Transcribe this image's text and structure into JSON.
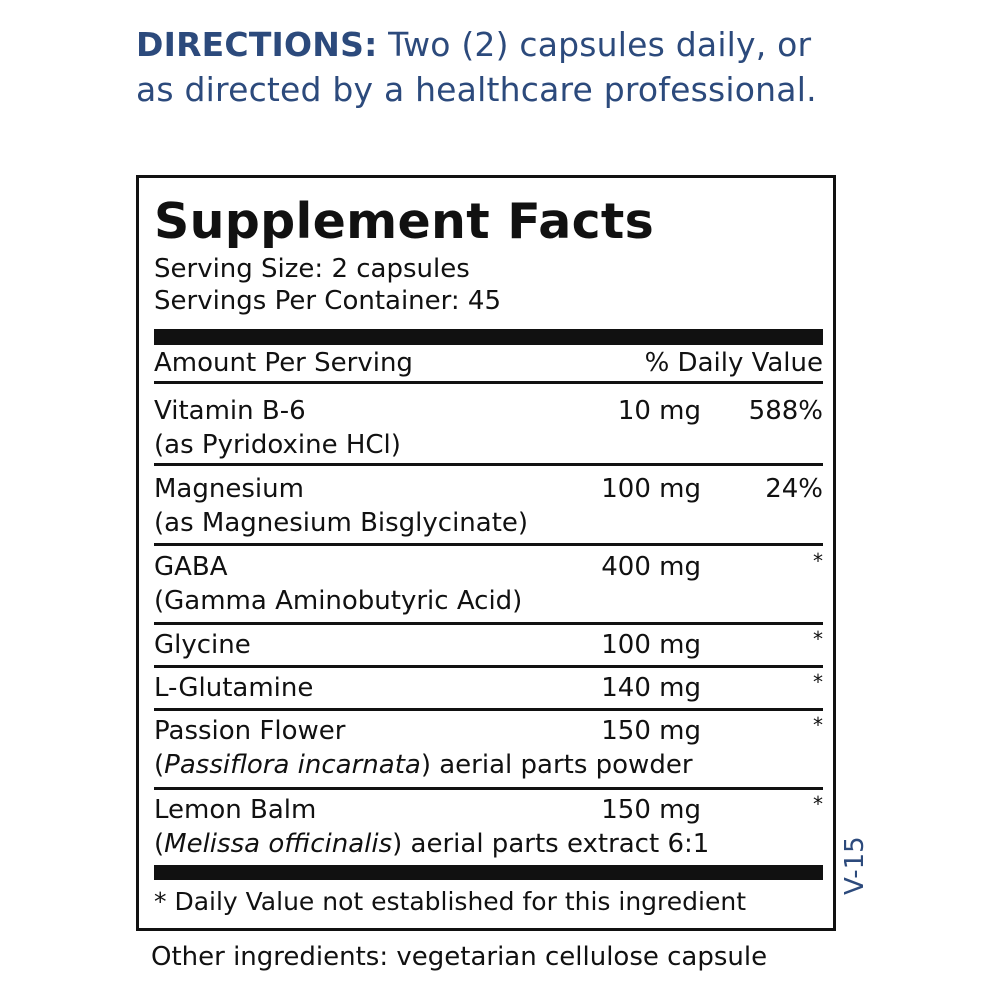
{
  "directions": {
    "label": "DIRECTIONS:",
    "text": "Two (2) capsules daily, or as directed by a healthcare professional."
  },
  "facts": {
    "title": "Supplement Facts",
    "serving_size": "Serving Size: 2 capsules",
    "servings_per_container": "Servings Per Container: 45",
    "header_amount": "Amount Per Serving",
    "header_dv": "% Daily Value",
    "rows": [
      {
        "name": "Vitamin B-6",
        "sub": "(as Pyridoxine HCl)",
        "amount": "10 mg",
        "dv": "588%"
      },
      {
        "name": "Magnesium",
        "sub": "(as Magnesium Bisglycinate)",
        "amount": "100 mg",
        "dv": "24%"
      },
      {
        "name": "GABA",
        "sub": "(Gamma Aminobutyric Acid)",
        "amount": "400 mg",
        "dv": "*"
      },
      {
        "name": "Glycine",
        "amount": "100 mg",
        "dv": "*"
      },
      {
        "name": "L-Glutamine",
        "amount": "140 mg",
        "dv": "*"
      },
      {
        "name": "Passion Flower",
        "sub_italic": "Passiflora incarnata",
        "sub_rest": ") aerial parts powder",
        "amount": "150 mg",
        "dv": "*"
      },
      {
        "name": "Lemon Balm",
        "sub_italic": "Melissa officinalis",
        "sub_rest": ") aerial parts extract 6:1",
        "amount": "150 mg",
        "dv": "*"
      }
    ],
    "footnote": "* Daily Value not established for this ingredient"
  },
  "other_ingredients": "Other ingredients: vegetarian cellulose capsule",
  "version": "V-15",
  "colors": {
    "accent": "#2c4a7c",
    "text": "#111111"
  }
}
